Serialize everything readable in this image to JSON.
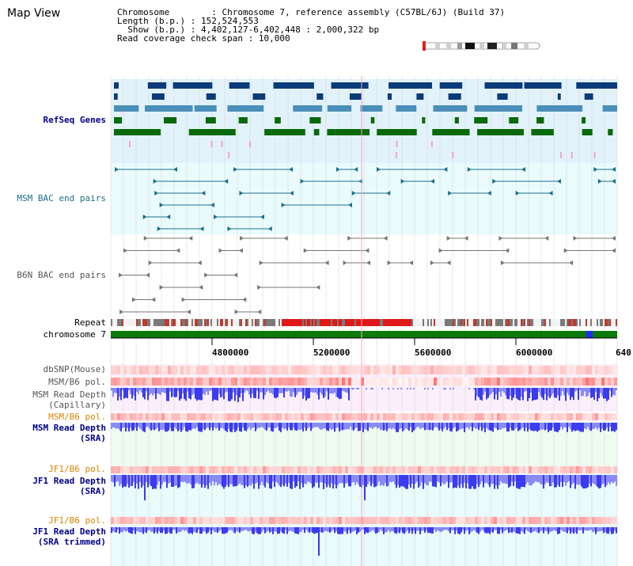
{
  "view_title": "Map View",
  "header": {
    "rows": [
      {
        "key": "Chromosome",
        "value": "Chromosome 7, reference assembly (C57BL/6J) (Build 37)"
      },
      {
        "key": "Length (b.p.)",
        "value": "152,524,553"
      },
      {
        "key": "Show (b.p.)",
        "value": "4,402,127-6,402,448 : 2,000,322 bp"
      },
      {
        "key": "Read coverage check span",
        "value": "10,000"
      }
    ]
  },
  "tracks": {
    "refseq_label": "RefSeq Genes",
    "msm_bac_label": "MSM BAC end pairs",
    "b6n_bac_label": "B6N BAC end pairs",
    "repeat_label": "Repeat",
    "chromosome_label": "chromosome 7",
    "dbsnp_label": "dbSNP(Mouse)",
    "msm_b6_pol_label_1": "MSM/B6 pol.",
    "msm_depth_cap_label": [
      "MSM Read Depth",
      "(Capillary)"
    ],
    "msm_b6_pol_label_2": "MSM/B6 pol.",
    "msm_depth_sra_label": [
      "MSM Read Depth",
      "(SRA)"
    ],
    "jf1_b6_pol_label_1": "JF1/B6 pol.",
    "jf1_depth_sra_label": [
      "JF1 Read Depth",
      "(SRA)"
    ],
    "jf1_b6_pol_label_2": "JF1/B6 pol.",
    "jf1_depth_trim_label": [
      "JF1 Read Depth",
      "(SRA trimmed)"
    ]
  },
  "axis": {
    "ticks": [
      "4800000",
      "5200000",
      "5600000",
      "6000000",
      "640"
    ]
  },
  "colors": {
    "gene_navy": "#0b3b78",
    "gene_steel": "#4a8fba",
    "gene_green": "#0a6a0a",
    "gene_pink": "#f2a6c8",
    "refseq_bg": "#e2f2fb",
    "msm_bac": "#1e6f8c",
    "msm_bac_bg": "#e9fbfb",
    "b6n_bac": "#777777",
    "chromosome_band": "#0b7a0b",
    "chromosome_marker": "#1a2cff",
    "snp_red": "#e84a4a",
    "depth_blue": "#3b3bf0",
    "label_orange": "#d98500",
    "label_navy": "#00008b"
  }
}
